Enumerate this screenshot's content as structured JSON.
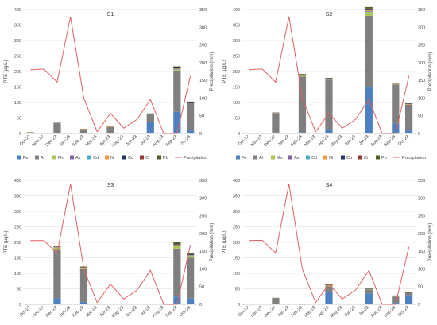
{
  "chart_data": [
    {
      "type": "bar",
      "title": "S1",
      "categories": [
        "Oct-22",
        "Nov-22",
        "Dec-22",
        "Jan-23",
        "Feb-23",
        "Mar-23",
        "Apr-23",
        "May-23",
        "Jun-23",
        "Jul-23",
        "Aug-23",
        "Sep-23",
        "Oct-23"
      ],
      "ylabel": "PTE (µg/L)",
      "y2label": "Precipitation (mm)",
      "ylim": [
        0,
        400
      ],
      "y2lim": [
        0,
        350
      ],
      "yticks": [
        0,
        50,
        100,
        150,
        200,
        250,
        300,
        350,
        400
      ],
      "y2ticks": [
        0,
        50,
        100,
        150,
        200,
        250,
        300,
        350
      ],
      "stack_series": [
        {
          "name": "Fe",
          "values": [
            0,
            0,
            2,
            null,
            1,
            null,
            2,
            null,
            null,
            38,
            null,
            70,
            10
          ]
        },
        {
          "name": "Al",
          "values": [
            4,
            0,
            30,
            null,
            13,
            null,
            20,
            null,
            null,
            24,
            null,
            133,
            88
          ]
        },
        {
          "name": "Mn",
          "values": [
            0.5,
            0,
            1,
            null,
            1,
            null,
            0.5,
            null,
            null,
            1,
            null,
            3,
            1
          ]
        },
        {
          "name": "As",
          "values": [
            0,
            0,
            0.5,
            null,
            0,
            null,
            0,
            null,
            null,
            0.5,
            null,
            1,
            0.5
          ]
        },
        {
          "name": "Cd",
          "values": [
            0,
            0,
            0,
            null,
            0,
            null,
            0,
            null,
            null,
            0,
            null,
            0.5,
            0
          ]
        },
        {
          "name": "Ni",
          "values": [
            0,
            0,
            0.5,
            null,
            0.5,
            null,
            0.5,
            null,
            null,
            0.5,
            null,
            2,
            0.5
          ]
        },
        {
          "name": "Cu",
          "values": [
            0,
            0,
            0.5,
            null,
            0,
            null,
            0,
            null,
            null,
            0.5,
            null,
            6,
            2
          ]
        },
        {
          "name": "Cr",
          "values": [
            0,
            0,
            0,
            null,
            0,
            null,
            0,
            null,
            null,
            0,
            null,
            0.5,
            0.5
          ]
        },
        {
          "name": "Pb",
          "values": [
            0,
            0,
            0,
            null,
            0,
            null,
            0,
            null,
            null,
            0,
            null,
            0.5,
            0.5
          ]
        }
      ],
      "line_series": {
        "name": "Precipitation",
        "values": [
          180,
          182,
          145,
          330,
          100,
          5,
          57,
          15,
          40,
          96,
          0,
          0,
          162
        ]
      }
    },
    {
      "type": "bar",
      "title": "S2",
      "categories": [
        "Oct-22",
        "Nov-22",
        "Dec-22",
        "Jan-23",
        "Feb-23",
        "Mar-23",
        "Apr-23",
        "May-23",
        "Jun-23",
        "Jul-23",
        "Aug-23",
        "Sep-23",
        "Oct-23"
      ],
      "ylabel": "PTE (µg/L)",
      "y2label": "Precipitation (mm)",
      "ylim": [
        0,
        400
      ],
      "y2lim": [
        0,
        350
      ],
      "yticks": [
        0,
        50,
        100,
        150,
        200,
        250,
        300,
        350,
        400
      ],
      "y2ticks": [
        0,
        50,
        100,
        150,
        200,
        250,
        300,
        350
      ],
      "stack_series": [
        {
          "name": "Fe",
          "values": [
            0,
            null,
            3,
            null,
            4,
            null,
            14,
            null,
            null,
            150,
            null,
            33,
            10
          ]
        },
        {
          "name": "Al",
          "values": [
            1,
            null,
            62,
            null,
            180,
            null,
            160,
            null,
            null,
            230,
            null,
            125,
            83
          ]
        },
        {
          "name": "Mn",
          "values": [
            0,
            null,
            1,
            null,
            3,
            null,
            2,
            null,
            null,
            12,
            null,
            2,
            1
          ]
        },
        {
          "name": "As",
          "values": [
            0,
            null,
            0.5,
            null,
            0.5,
            null,
            0.5,
            null,
            null,
            2,
            null,
            0.5,
            0.5
          ]
        },
        {
          "name": "Cd",
          "values": [
            0,
            null,
            0,
            null,
            0,
            null,
            0,
            null,
            null,
            1,
            null,
            0,
            0
          ]
        },
        {
          "name": "Ni",
          "values": [
            0,
            null,
            0.5,
            null,
            1,
            null,
            1,
            null,
            null,
            3,
            null,
            1,
            0.5
          ]
        },
        {
          "name": "Cu",
          "values": [
            0,
            null,
            0.5,
            null,
            1,
            null,
            1,
            null,
            null,
            4,
            null,
            1,
            1
          ]
        },
        {
          "name": "Cr",
          "values": [
            0,
            null,
            0,
            null,
            0.5,
            null,
            0.5,
            null,
            null,
            1,
            null,
            0.5,
            0.5
          ]
        },
        {
          "name": "Pb",
          "values": [
            0,
            null,
            0,
            null,
            2,
            null,
            0.5,
            null,
            null,
            5,
            null,
            1,
            0.5
          ]
        }
      ],
      "line_series": {
        "name": "Precipitation",
        "values": [
          180,
          182,
          145,
          330,
          100,
          5,
          57,
          15,
          40,
          96,
          0,
          0,
          162
        ]
      }
    },
    {
      "type": "bar",
      "title": "S3",
      "categories": [
        "Oct-22",
        "Nov-22",
        "Dec-22",
        "Jan-23",
        "Feb-23",
        "Mar-23",
        "Apr-23",
        "May-23",
        "Jun-23",
        "Jul-23",
        "Aug-23",
        "Sep-23",
        "Oct-23"
      ],
      "ylabel": "PTE (µg/L)",
      "y2label": "Precipitation (mm)",
      "ylim": [
        0,
        400
      ],
      "y2lim": [
        0,
        350
      ],
      "yticks": [
        0,
        50,
        100,
        150,
        200,
        250,
        300,
        350,
        400
      ],
      "y2ticks": [
        0,
        50,
        100,
        150,
        200,
        250,
        300,
        350
      ],
      "stack_series": [
        {
          "name": "Fe",
          "values": [
            null,
            null,
            20,
            null,
            8,
            null,
            null,
            null,
            null,
            null,
            null,
            25,
            20
          ]
        },
        {
          "name": "Al",
          "values": [
            null,
            null,
            158,
            null,
            108,
            null,
            null,
            null,
            null,
            null,
            null,
            155,
            130
          ]
        },
        {
          "name": "Mn",
          "values": [
            null,
            null,
            5,
            null,
            3,
            null,
            null,
            null,
            null,
            null,
            null,
            8,
            6
          ]
        },
        {
          "name": "As",
          "values": [
            null,
            null,
            1,
            null,
            0.5,
            null,
            null,
            null,
            null,
            null,
            null,
            1,
            1
          ]
        },
        {
          "name": "Cd",
          "values": [
            null,
            null,
            0.5,
            null,
            0,
            null,
            null,
            null,
            null,
            null,
            null,
            0.5,
            0.5
          ]
        },
        {
          "name": "Ni",
          "values": [
            null,
            null,
            1,
            null,
            0.5,
            null,
            null,
            null,
            null,
            null,
            null,
            2,
            1
          ]
        },
        {
          "name": "Cu",
          "values": [
            null,
            null,
            1,
            null,
            0.5,
            null,
            null,
            null,
            null,
            null,
            null,
            2,
            2
          ]
        },
        {
          "name": "Cr",
          "values": [
            null,
            null,
            0.5,
            null,
            0.5,
            null,
            null,
            null,
            null,
            null,
            null,
            1,
            1
          ]
        },
        {
          "name": "Pb",
          "values": [
            null,
            null,
            2,
            null,
            1,
            null,
            null,
            null,
            null,
            null,
            null,
            6,
            3
          ]
        }
      ],
      "line_series": {
        "name": "Precipitation",
        "values": [
          180,
          180,
          145,
          340,
          100,
          5,
          57,
          15,
          40,
          96,
          0,
          0,
          168
        ]
      }
    },
    {
      "type": "bar",
      "title": "S4",
      "categories": [
        "Oct-22",
        "Nov-22",
        "Dec-22",
        "Jan-23",
        "Feb-23",
        "Mar-23",
        "Apr-23",
        "May-23",
        "Jun-23",
        "Jul-23",
        "Aug-23",
        "Sep-23",
        "Oct-23"
      ],
      "ylabel": "PTE (µg/L)",
      "y2label": "Precipitation (mm)",
      "ylim": [
        0,
        400
      ],
      "y2lim": [
        0,
        350
      ],
      "yticks": [
        0,
        50,
        100,
        150,
        200,
        250,
        300,
        350,
        400
      ],
      "y2ticks": [
        0,
        50,
        100,
        150,
        200,
        250,
        300,
        350
      ],
      "stack_series": [
        {
          "name": "Fe",
          "values": [
            null,
            null,
            2,
            null,
            0.5,
            null,
            40,
            null,
            null,
            35,
            null,
            5,
            30
          ]
        },
        {
          "name": "Al",
          "values": [
            null,
            null,
            17,
            null,
            0.5,
            null,
            18,
            null,
            null,
            13,
            null,
            20,
            6
          ]
        },
        {
          "name": "Mn",
          "values": [
            null,
            null,
            1,
            null,
            0.5,
            null,
            3,
            null,
            null,
            2,
            null,
            1,
            1
          ]
        },
        {
          "name": "As",
          "values": [
            null,
            null,
            0,
            null,
            0,
            null,
            0.5,
            null,
            null,
            0.5,
            null,
            0.5,
            0.5
          ]
        },
        {
          "name": "Cd",
          "values": [
            null,
            null,
            0,
            null,
            0,
            null,
            0,
            null,
            null,
            0,
            null,
            0,
            0
          ]
        },
        {
          "name": "Ni",
          "values": [
            null,
            null,
            0.5,
            null,
            1,
            null,
            0.5,
            null,
            null,
            0.5,
            null,
            0.5,
            0.5
          ]
        },
        {
          "name": "Cu",
          "values": [
            null,
            null,
            0.5,
            null,
            0,
            null,
            0.5,
            null,
            null,
            0.5,
            null,
            0.5,
            0.5
          ]
        },
        {
          "name": "Cr",
          "values": [
            null,
            null,
            0,
            null,
            0,
            null,
            0.5,
            null,
            null,
            0,
            null,
            0.5,
            0
          ]
        },
        {
          "name": "Pb",
          "values": [
            null,
            null,
            0,
            null,
            0,
            null,
            1,
            null,
            null,
            0.5,
            null,
            0.5,
            0.5
          ]
        }
      ],
      "line_series": {
        "name": "Precipitation",
        "values": [
          180,
          181,
          145,
          340,
          100,
          5,
          57,
          15,
          40,
          96,
          0,
          0,
          162
        ]
      }
    }
  ],
  "legend_entries": [
    "Fe",
    "Al",
    "Mn",
    "As",
    "Cd",
    "Ni",
    "Cu",
    "Cr",
    "Pb",
    "Precipitation"
  ],
  "colors": {
    "Fe": "#4e80c0",
    "Al": "#7f7f7f",
    "Mn": "#a9c653",
    "As": "#8064a2",
    "Cd": "#4bacc6",
    "Ni": "#f79646",
    "Cu": "#1f3864",
    "Cr": "#953735",
    "Pb": "#4f6228",
    "Precipitation": "#e06060",
    "gridline": "#d9d9d9",
    "axis": "#bfbfbf"
  }
}
